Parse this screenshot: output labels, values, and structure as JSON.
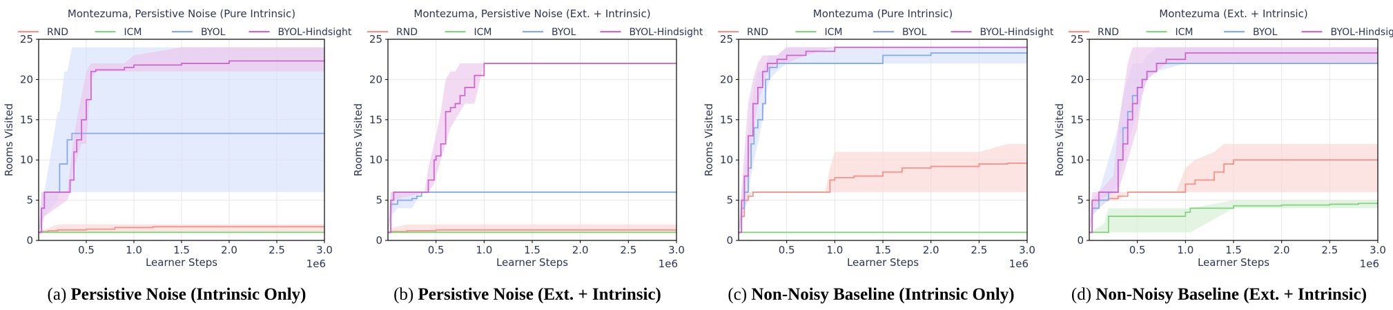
{
  "colors": {
    "RND": "#f4928a",
    "ICM": "#7fd47c",
    "BYOL": "#86a8f2",
    "BYOL-Hindsight": "#cc66cc",
    "RND_band": "#fbd6d2",
    "ICM_band": "#d4f0d2",
    "BYOL_band": "#d6e1fb",
    "BYOL-Hindsight_band": "#ecc6ec"
  },
  "captions": [
    {
      "letter": "(a)",
      "text": "Persistive Noise (Intrinsic Only)"
    },
    {
      "letter": "(b)",
      "text": "Persistive Noise (Ext. + Intrinsic)"
    },
    {
      "letter": "(c)",
      "text": "Non-Noisy Baseline (Intrinsic Only)"
    },
    {
      "letter": "(d)",
      "text": "Non-Noisy Baseline (Ext. + Intrinsic)"
    }
  ],
  "chart_data": [
    {
      "type": "line",
      "title": "Montezuma, Persistive Noise (Pure Intrinsic)",
      "xlabel": "Learner Steps",
      "ylabel": "Rooms Visited",
      "x_scale_label": "1e6",
      "xlim": [
        0,
        3.0
      ],
      "ylim": [
        0,
        25
      ],
      "xticks": [
        "0.5",
        "1.0",
        "1.5",
        "2.0",
        "2.5",
        "3.0"
      ],
      "yticks": [
        "0",
        "5",
        "10",
        "15",
        "20",
        "25"
      ],
      "grid": true,
      "legend": "top",
      "series": [
        {
          "name": "RND",
          "x": [
            0,
            0.02,
            0.1,
            0.2,
            0.5,
            0.8,
            1.2,
            3.0
          ],
          "y": [
            1,
            1.1,
            1.2,
            1.3,
            1.4,
            1.6,
            1.7,
            1.7
          ],
          "lo": [
            1,
            1,
            1,
            1,
            1,
            1,
            1,
            1
          ],
          "hi": [
            1,
            1.3,
            1.5,
            2,
            2,
            2,
            2,
            2
          ]
        },
        {
          "name": "ICM",
          "x": [
            0,
            3.0
          ],
          "y": [
            1,
            1
          ],
          "lo": [
            1,
            1
          ],
          "hi": [
            1,
            1
          ]
        },
        {
          "name": "BYOL",
          "x": [
            0,
            0.03,
            0.06,
            0.2,
            0.22,
            0.27,
            0.3,
            0.35,
            3.0
          ],
          "y": [
            1,
            4,
            6,
            6,
            9.5,
            9.5,
            12.5,
            13.3,
            13.3
          ],
          "lo": [
            1,
            2,
            3,
            5,
            6,
            6,
            6,
            6,
            6
          ],
          "hi": [
            1,
            6,
            6,
            16,
            16,
            21,
            21,
            24,
            24
          ]
        },
        {
          "name": "BYOL-Hindsight",
          "x": [
            0,
            0.03,
            0.06,
            0.3,
            0.33,
            0.37,
            0.4,
            0.45,
            0.5,
            0.55,
            0.6,
            0.9,
            1.0,
            1.5,
            2.0,
            3.0
          ],
          "y": [
            1,
            4,
            6,
            6,
            7.5,
            11,
            12.5,
            15,
            17.5,
            21,
            21.2,
            21.5,
            21.8,
            22,
            22.3,
            22.3
          ],
          "lo": [
            1,
            2,
            3,
            5,
            6,
            9,
            10,
            12,
            12,
            20,
            21,
            21,
            21,
            21,
            21,
            21
          ],
          "hi": [
            1,
            6,
            6,
            6,
            9,
            13,
            15,
            18,
            21,
            22,
            22,
            22,
            23,
            24,
            24,
            24
          ]
        }
      ]
    },
    {
      "type": "line",
      "title": "Montezuma, Persistive Noise (Ext. + Intrinsic)",
      "xlabel": "Learner Steps",
      "ylabel": "Rooms Visited",
      "x_scale_label": "1e6",
      "xlim": [
        0,
        3.0
      ],
      "ylim": [
        0,
        25
      ],
      "xticks": [
        "0.5",
        "1.0",
        "1.5",
        "2.0",
        "2.5",
        "3.0"
      ],
      "yticks": [
        "0",
        "5",
        "10",
        "15",
        "20",
        "25"
      ],
      "grid": true,
      "legend": "top",
      "series": [
        {
          "name": "RND",
          "x": [
            0,
            0.03,
            0.2,
            0.5,
            3.0
          ],
          "y": [
            1,
            1.1,
            1.2,
            1.3,
            1.3
          ],
          "lo": [
            1,
            1,
            1,
            1,
            1
          ],
          "hi": [
            1,
            1.5,
            2,
            2,
            2
          ]
        },
        {
          "name": "ICM",
          "x": [
            0,
            3.0
          ],
          "y": [
            1,
            1
          ],
          "lo": [
            1,
            1
          ],
          "hi": [
            1,
            1
          ]
        },
        {
          "name": "BYOL",
          "x": [
            0,
            0.03,
            0.1,
            0.25,
            0.3,
            0.35,
            3.0
          ],
          "y": [
            1,
            4.5,
            5,
            5.2,
            5.5,
            6,
            6
          ],
          "lo": [
            1,
            3,
            4,
            4,
            5,
            6,
            6
          ],
          "hi": [
            1,
            6,
            6,
            6,
            6,
            6,
            6
          ]
        },
        {
          "name": "BYOL-Hindsight",
          "x": [
            0,
            0.03,
            0.06,
            0.38,
            0.42,
            0.48,
            0.5,
            0.55,
            0.6,
            0.65,
            0.7,
            0.75,
            0.8,
            0.9,
            1.0,
            3.0
          ],
          "y": [
            1,
            5,
            6,
            6,
            7.5,
            10,
            10.5,
            12,
            16,
            16.5,
            17,
            18,
            19,
            20.5,
            22,
            22
          ],
          "lo": [
            1,
            3,
            5,
            6,
            6,
            7,
            8,
            10,
            12,
            14,
            15,
            16,
            17,
            17,
            22,
            22
          ],
          "hi": [
            1,
            6,
            6,
            6,
            9,
            12,
            13,
            16,
            20,
            21,
            21,
            22,
            22,
            22,
            22,
            22
          ]
        }
      ]
    },
    {
      "type": "line",
      "title": "Montezuma (Pure Intrinsic)",
      "xlabel": "Learner Steps",
      "ylabel": "Rooms Visited",
      "x_scale_label": "1e6",
      "xlim": [
        0,
        3.0
      ],
      "ylim": [
        0,
        25
      ],
      "xticks": [
        "0.5",
        "1.0",
        "1.5",
        "2.0",
        "2.5",
        "3.0"
      ],
      "yticks": [
        "0",
        "5",
        "10",
        "15",
        "20",
        "25"
      ],
      "grid": true,
      "legend": "top",
      "series": [
        {
          "name": "RND",
          "x": [
            0,
            0.03,
            0.06,
            0.1,
            0.15,
            0.9,
            0.95,
            1.0,
            1.2,
            1.5,
            1.7,
            2.0,
            2.5,
            2.8,
            3.0
          ],
          "y": [
            1,
            3,
            5,
            5.5,
            6,
            6,
            7.5,
            7.8,
            8,
            8.5,
            9,
            9.2,
            9.5,
            9.6,
            9.7
          ],
          "lo": [
            1,
            2,
            4,
            5,
            6,
            6,
            6,
            6,
            6,
            6,
            6,
            6,
            6,
            6,
            6
          ],
          "hi": [
            1,
            5,
            6,
            6,
            6,
            6,
            9,
            11,
            11,
            11,
            11,
            11,
            11,
            12,
            12
          ]
        },
        {
          "name": "ICM",
          "x": [
            0,
            3.0
          ],
          "y": [
            1,
            1
          ],
          "lo": [
            1,
            1
          ],
          "hi": [
            1,
            1
          ]
        },
        {
          "name": "BYOL",
          "x": [
            0,
            0.03,
            0.06,
            0.1,
            0.13,
            0.16,
            0.2,
            0.25,
            0.28,
            0.32,
            0.4,
            0.5,
            1.4,
            1.5,
            2.0,
            3.0
          ],
          "y": [
            1,
            4,
            6,
            9,
            12,
            14,
            15,
            17,
            20,
            21.5,
            22,
            22,
            22,
            23,
            23.3,
            23.3
          ],
          "lo": [
            1,
            2,
            4,
            5,
            8,
            10,
            12,
            15,
            18,
            20,
            21,
            22,
            22,
            22,
            22,
            22
          ],
          "hi": [
            1,
            6,
            8,
            13,
            16,
            19,
            21,
            21,
            22,
            23,
            23,
            24,
            24,
            24,
            24,
            24
          ]
        },
        {
          "name": "BYOL-Hindsight",
          "x": [
            0,
            0.03,
            0.06,
            0.1,
            0.15,
            0.2,
            0.25,
            0.3,
            0.4,
            0.5,
            0.7,
            1.0,
            3.0
          ],
          "y": [
            1,
            5,
            8,
            13,
            17,
            19,
            21,
            22,
            22.5,
            23,
            23.5,
            24,
            24
          ],
          "lo": [
            1,
            3,
            5,
            9,
            13,
            17,
            19,
            21,
            22,
            22,
            23,
            24,
            24
          ],
          "hi": [
            1,
            6,
            11,
            17,
            20,
            22,
            23,
            23,
            23,
            24,
            24,
            24,
            24
          ]
        }
      ]
    },
    {
      "type": "line",
      "title": "Montezuma (Ext. + Intrinsic)",
      "xlabel": "Learner Steps",
      "ylabel": "Rooms Visited",
      "x_scale_label": "1e6",
      "xlim": [
        0,
        3.0
      ],
      "ylim": [
        0,
        25
      ],
      "xticks": [
        "0.5",
        "1.0",
        "1.5",
        "2.0",
        "2.5",
        "3.0"
      ],
      "yticks": [
        "0",
        "5",
        "10",
        "15",
        "20",
        "25"
      ],
      "grid": true,
      "legend": "top",
      "series": [
        {
          "name": "RND",
          "x": [
            0,
            0.03,
            0.1,
            0.2,
            0.3,
            0.4,
            0.9,
            1.0,
            1.1,
            1.3,
            1.4,
            1.5,
            2.0,
            3.0
          ],
          "y": [
            1,
            4,
            5,
            5.2,
            5.5,
            6,
            6,
            7,
            7.5,
            8.5,
            9.5,
            10,
            10,
            10
          ],
          "lo": [
            1,
            3,
            4,
            5,
            5,
            6,
            6,
            6,
            6,
            6,
            6,
            6,
            6,
            6
          ],
          "hi": [
            1,
            5,
            6,
            6,
            6,
            6,
            6,
            9,
            10,
            11,
            12,
            12,
            12,
            12
          ]
        },
        {
          "name": "ICM",
          "x": [
            0,
            0.15,
            0.2,
            0.5,
            1.0,
            1.05,
            1.5,
            2.0,
            2.5,
            2.8,
            3.0
          ],
          "y": [
            1,
            1,
            3,
            3,
            3.5,
            4,
            4.3,
            4.4,
            4.5,
            4.6,
            4.7
          ],
          "lo": [
            1,
            1,
            1,
            1,
            1,
            1,
            4,
            4,
            4,
            4,
            4
          ],
          "hi": [
            1,
            2,
            4,
            4,
            4,
            4,
            5,
            5,
            5,
            5,
            5
          ]
        },
        {
          "name": "BYOL",
          "x": [
            0,
            0.03,
            0.1,
            0.2,
            0.3,
            0.35,
            0.4,
            0.45,
            0.5,
            0.55,
            0.6,
            0.7,
            1.0,
            2.0,
            3.0
          ],
          "y": [
            1,
            4,
            5,
            6,
            10,
            14,
            16,
            18,
            19,
            20,
            21,
            22,
            22,
            22,
            22
          ],
          "lo": [
            1,
            3,
            4,
            5,
            7,
            10,
            12,
            14,
            16,
            18,
            20,
            21,
            22,
            22,
            22
          ],
          "hi": [
            1,
            5,
            6,
            10,
            14,
            18,
            20,
            22,
            22,
            22,
            23,
            24,
            24,
            24,
            24
          ]
        },
        {
          "name": "BYOL-Hindsight",
          "x": [
            0,
            0.03,
            0.1,
            0.25,
            0.3,
            0.35,
            0.4,
            0.45,
            0.5,
            0.55,
            0.6,
            0.7,
            0.8,
            1.0,
            3.0
          ],
          "y": [
            1,
            5,
            6,
            6,
            10,
            12,
            15,
            17,
            19,
            20,
            21,
            22,
            22.5,
            23.3,
            23.3
          ],
          "lo": [
            1,
            3,
            5,
            6,
            6,
            8,
            10,
            12,
            14,
            18,
            20,
            21,
            22,
            22,
            22
          ],
          "hi": [
            1,
            6,
            6,
            8,
            14,
            18,
            22,
            24,
            24,
            24,
            24,
            24,
            24,
            24,
            24
          ]
        }
      ]
    }
  ]
}
